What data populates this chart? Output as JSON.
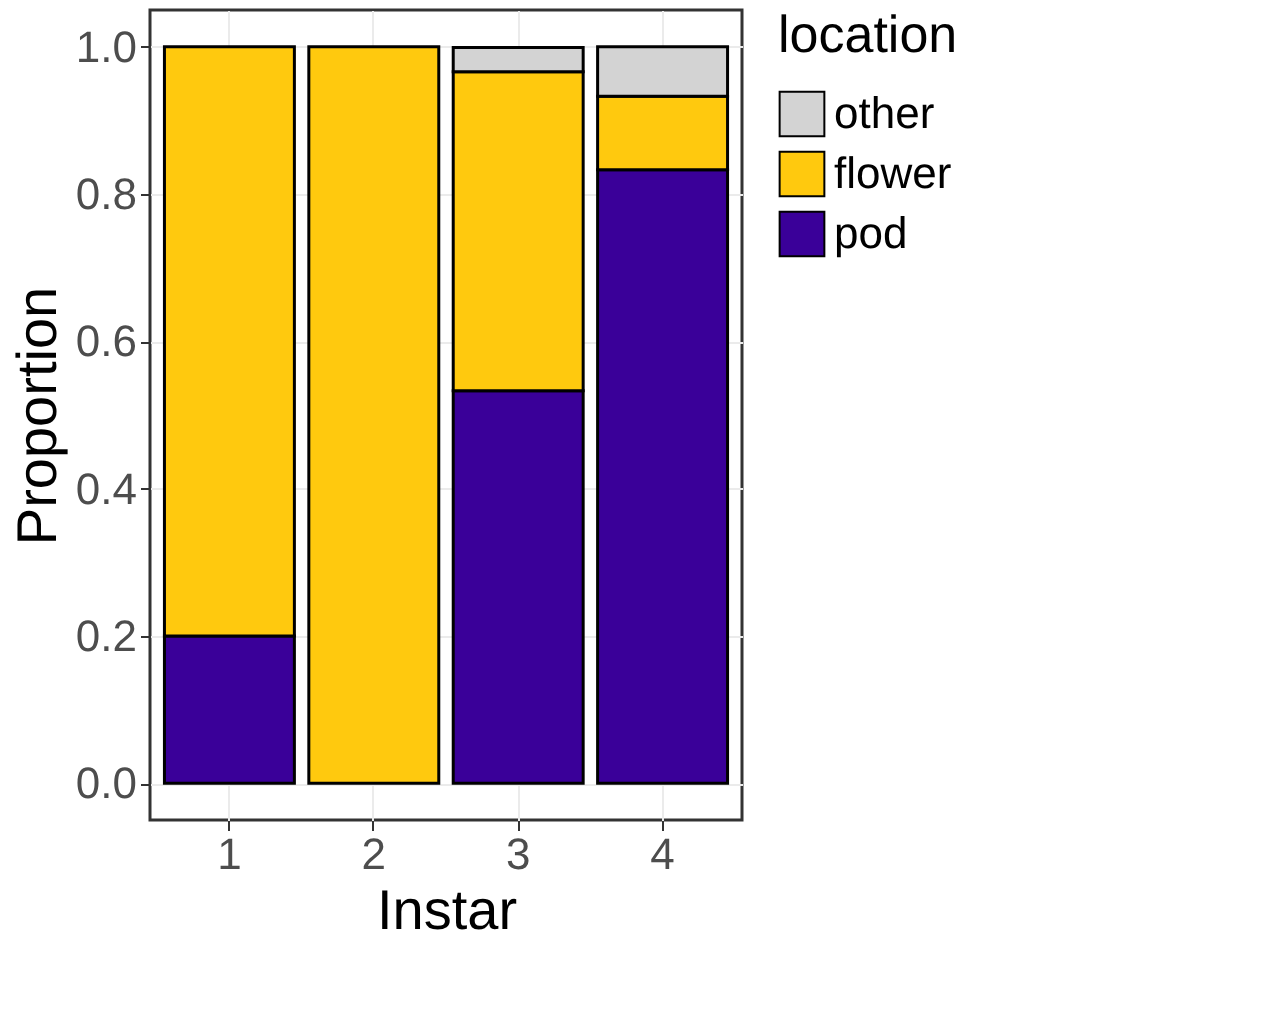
{
  "chart_data": {
    "type": "bar",
    "stacked": true,
    "xlabel": "Instar",
    "ylabel": "Proportion",
    "legend_title": "location",
    "legend": "right",
    "categories": [
      "1",
      "2",
      "3",
      "4"
    ],
    "series": [
      {
        "name": "pod",
        "color": "#3a0099",
        "values": [
          0.2,
          0.0,
          0.533,
          0.833
        ]
      },
      {
        "name": "flower",
        "color": "#ffc90e",
        "values": [
          0.8,
          1.0,
          0.433,
          0.1
        ]
      },
      {
        "name": "other",
        "color": "#d3d3d3",
        "values": [
          0.0,
          0.0,
          0.033,
          0.067
        ]
      }
    ],
    "ylim": [
      -0.05,
      1.05
    ],
    "yticks": [
      {
        "value": 0,
        "label": "0.0"
      },
      0.2,
      0.4,
      0.6,
      0.8,
      {
        "value": 1,
        "label": "1.0"
      }
    ],
    "grid": true
  }
}
